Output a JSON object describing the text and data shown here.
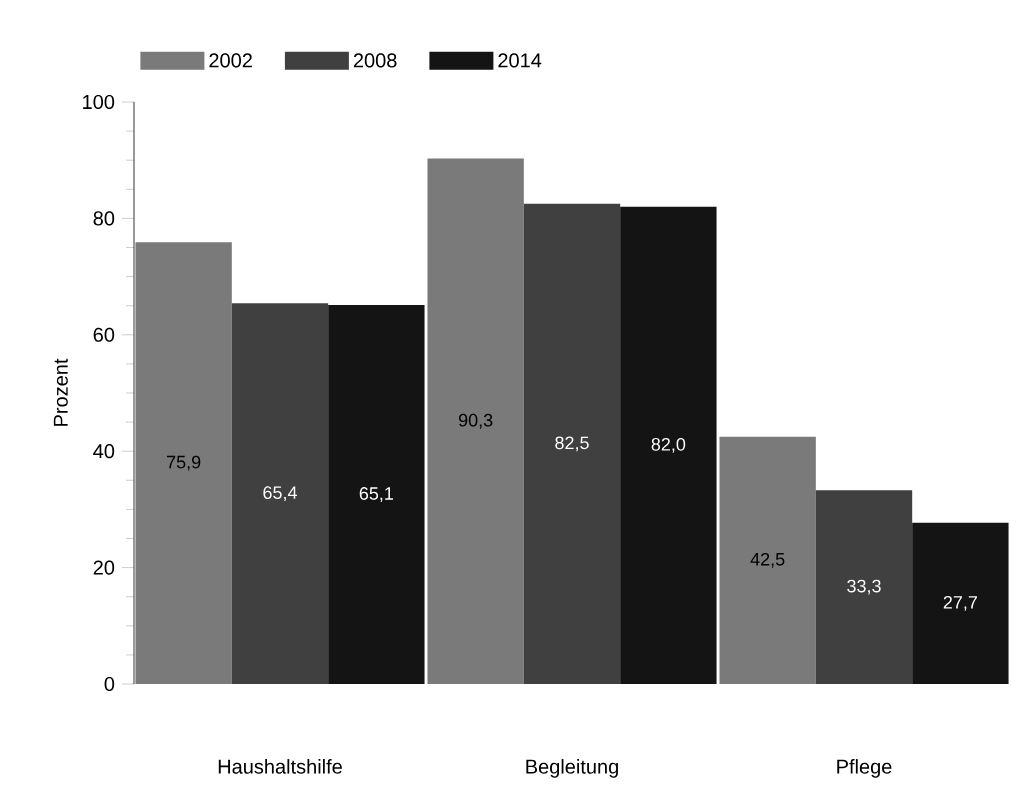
{
  "chart_data": {
    "type": "bar",
    "ylabel": "Prozent",
    "categories": [
      "Haushaltshilfe",
      "Begleitung",
      "Pflege"
    ],
    "series": [
      {
        "name": "2002",
        "color": "#7a7a7a",
        "values": [
          75.9,
          90.3,
          42.5
        ],
        "value_labels": [
          "75,9",
          "90,3",
          "42,5"
        ]
      },
      {
        "name": "2008",
        "color": "#404040",
        "values": [
          65.4,
          82.5,
          33.3
        ],
        "value_labels": [
          "65,4",
          "82,5",
          "33,3"
        ]
      },
      {
        "name": "2014",
        "color": "#141414",
        "values": [
          65.1,
          82.0,
          27.7
        ],
        "value_labels": [
          "65,1",
          "82,0",
          "27,7"
        ]
      }
    ],
    "ylim": [
      0,
      100
    ],
    "yticks": [
      0,
      20,
      40,
      60,
      80,
      100
    ],
    "legend": "top left",
    "grid": false
  }
}
